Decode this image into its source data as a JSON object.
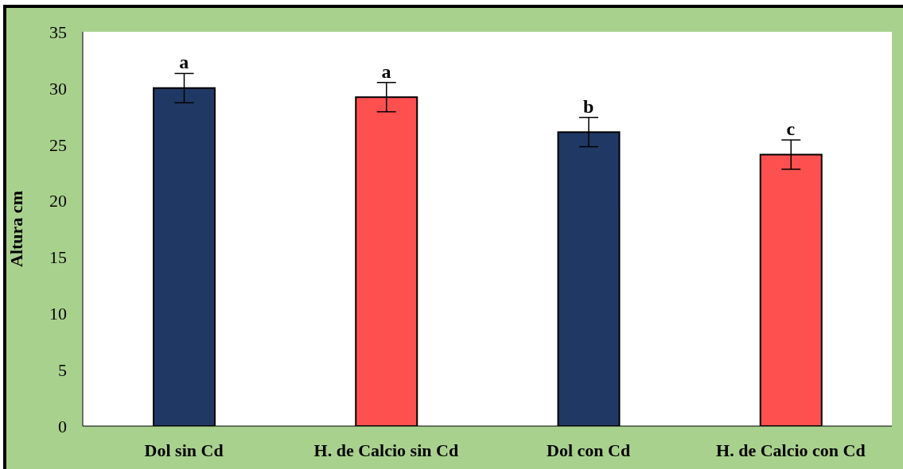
{
  "chart_data": {
    "type": "bar",
    "ylabel": "Altura cm",
    "categories": [
      "Dol sin Cd",
      "H. de Calcio sin Cd",
      "Dol con Cd",
      "H. de Calcio con Cd"
    ],
    "values": [
      30,
      29.2,
      26.1,
      24.1
    ],
    "errors": [
      1.3,
      1.3,
      1.3,
      1.3
    ],
    "colors": [
      "#203864",
      "#ff5050",
      "#203864",
      "#ff5050"
    ],
    "ylim": [
      0,
      35
    ],
    "yticks": [
      0,
      5,
      10,
      15,
      20,
      25,
      30,
      35
    ],
    "annotations": [
      {
        "text": "a",
        "x": "Dol sin Cd",
        "y": 31.3
      },
      {
        "text": "a",
        "x": "H. de Calcio sin Cd",
        "y": 30.5
      },
      {
        "text": "b",
        "x": "Dol con Cd",
        "y": 27.4
      },
      {
        "text": "c",
        "x": "H. de Calcio con Cd",
        "y": 25.4
      }
    ]
  }
}
